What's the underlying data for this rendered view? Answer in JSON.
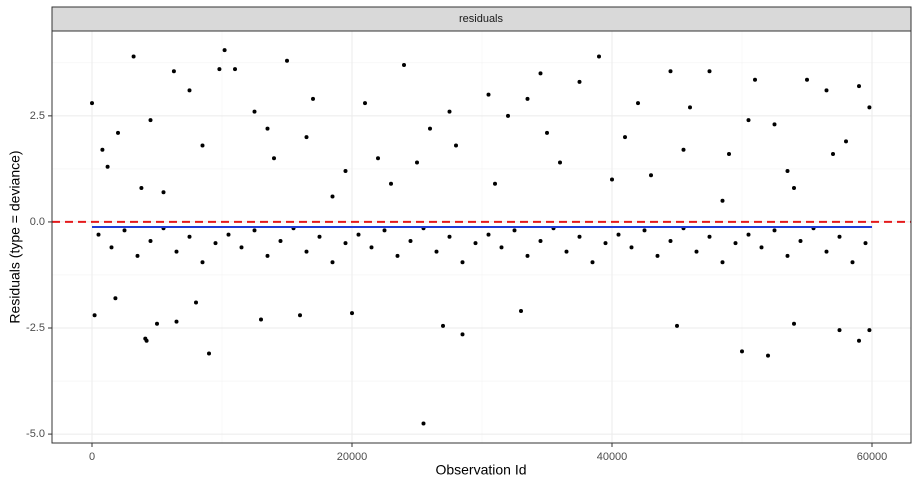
{
  "chart_data": {
    "type": "scatter",
    "strip": "residuals",
    "xlabel": "Observation Id",
    "ylabel": "Residuals (type = deviance)",
    "xlim": [
      -3077,
      63000
    ],
    "ylim": [
      -5.21,
      4.5
    ],
    "xticks": [
      0,
      20000,
      40000,
      60000
    ],
    "yticks": [
      {
        "value": -5,
        "label": "-5.0"
      },
      {
        "value": -2.5,
        "label": "-2.5"
      },
      {
        "value": 0,
        "label": "0.0"
      },
      {
        "value": 2.5,
        "label": "2.5"
      }
    ],
    "minor_xticks": [
      10000,
      30000,
      50000
    ],
    "minor_yticks": [
      -3.75,
      -1.25,
      1.25,
      3.75
    ],
    "grid": true,
    "color": "#000000",
    "hline": {
      "value": 0,
      "color": "#e41a1c"
    },
    "trend": {
      "x": [
        0,
        60000
      ],
      "values": [
        -0.12,
        -0.12
      ],
      "color": "#1f3bd6"
    },
    "x": [
      3200,
      10200,
      39000,
      15000,
      24000,
      6300,
      44500,
      47500,
      34500,
      51000,
      55000,
      9800,
      11000,
      0,
      800,
      59800,
      2000,
      4500,
      7500,
      12500,
      14000,
      17000,
      19500,
      21000,
      23000,
      26000,
      28000,
      30500,
      32000,
      36000,
      37500,
      41000,
      43000,
      46000,
      49000,
      52500,
      54000,
      56500,
      58000,
      59000,
      1200,
      5500,
      8500,
      13500,
      18500,
      22000,
      27500,
      31000,
      35000,
      40000,
      42000,
      45500,
      48500,
      50500,
      53500,
      57000,
      3800,
      16500,
      25000,
      33500,
      25500,
      9000,
      50000,
      52000,
      4200,
      4100,
      59000,
      59800,
      5000,
      27000,
      28500,
      6500,
      45000,
      57500,
      13000,
      16000,
      200,
      20000,
      54000,
      33000,
      1800,
      8000,
      500,
      1500,
      2500,
      3500,
      4500,
      5500,
      6500,
      7500,
      8500,
      9500,
      10500,
      11500,
      12500,
      13500,
      14500,
      15500,
      16500,
      17500,
      18500,
      19500,
      20500,
      21500,
      22500,
      23500,
      24500,
      25500,
      26500,
      27500,
      28500,
      29500,
      30500,
      31500,
      32500,
      33500,
      34500,
      35500,
      36500,
      37500,
      38500,
      39500,
      40500,
      41500,
      42500,
      43500,
      44500,
      45500,
      46500,
      47500,
      48500,
      49500,
      50500,
      51500,
      52500,
      53500,
      54500,
      55500,
      56500,
      57500,
      58500,
      59500
    ],
    "values": [
      3.9,
      4.05,
      3.9,
      3.8,
      3.7,
      3.55,
      3.55,
      3.55,
      3.5,
      3.35,
      3.35,
      3.6,
      3.6,
      2.8,
      1.7,
      2.7,
      2.1,
      2.4,
      3.1,
      2.6,
      1.5,
      2.9,
      1.2,
      2.8,
      0.9,
      2.2,
      1.8,
      3.0,
      2.5,
      1.4,
      3.3,
      2.0,
      1.1,
      2.7,
      1.6,
      2.3,
      0.8,
      3.1,
      1.9,
      3.2,
      1.3,
      0.7,
      1.8,
      2.2,
      0.6,
      1.5,
      2.6,
      0.9,
      2.1,
      1.0,
      2.8,
      1.7,
      0.5,
      2.4,
      1.2,
      1.6,
      0.8,
      2.0,
      1.4,
      2.9,
      -4.75,
      -3.1,
      -3.05,
      -3.15,
      -2.8,
      -2.75,
      -2.8,
      -2.55,
      -2.4,
      -2.45,
      -2.65,
      -2.35,
      -2.45,
      -2.55,
      -2.3,
      -2.2,
      -2.2,
      -2.15,
      -2.4,
      -2.1,
      -1.8,
      -1.9,
      -0.3,
      -0.6,
      -0.2,
      -0.8,
      -0.45,
      -0.15,
      -0.7,
      -0.35,
      -0.95,
      -0.5,
      -0.3,
      -0.6,
      -0.2,
      -0.8,
      -0.45,
      -0.15,
      -0.7,
      -0.35,
      -0.95,
      -0.5,
      -0.3,
      -0.6,
      -0.2,
      -0.8,
      -0.45,
      -0.15,
      -0.7,
      -0.35,
      -0.95,
      -0.5,
      -0.3,
      -0.6,
      -0.2,
      -0.8,
      -0.45,
      -0.15,
      -0.7,
      -0.35,
      -0.95,
      -0.5,
      -0.3,
      -0.6,
      -0.2,
      -0.8,
      -0.45,
      -0.15,
      -0.7,
      -0.35,
      -0.95,
      -0.5,
      -0.3,
      -0.6,
      -0.2,
      -0.8,
      -0.45,
      -0.15,
      -0.7,
      -0.35,
      -0.95,
      -0.5
    ]
  }
}
